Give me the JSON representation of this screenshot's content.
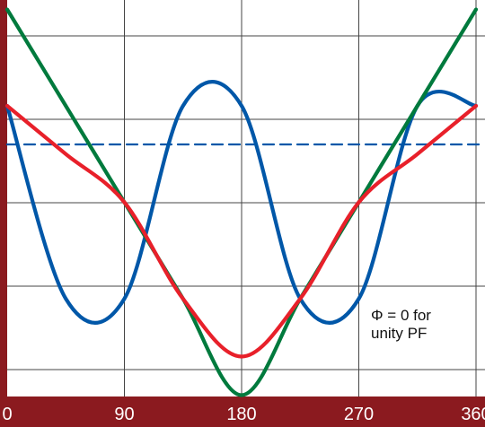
{
  "chart_data": {
    "type": "line",
    "title": "",
    "xlabel": "",
    "ylabel": "",
    "x_ticks": [
      "0",
      "90",
      "180",
      "270",
      "360"
    ],
    "xlim": [
      0,
      360
    ],
    "ylim": [
      -1.1,
      1.1
    ],
    "grid": true,
    "annotation": [
      "Φ = 0 for",
      "unity PF"
    ],
    "series": [
      {
        "color": "#0057a8",
        "style": "solid",
        "x": [
          0,
          45,
          90,
          135,
          180,
          225,
          270,
          315,
          360
        ],
        "y": [
          0.5,
          -0.5,
          -0.5,
          0.5,
          0.5,
          -0.5,
          -0.5,
          0.5,
          0.5
        ]
      },
      {
        "color": "#007a3d",
        "style": "solid",
        "x": [
          0,
          45,
          90,
          135,
          180,
          225,
          270,
          315,
          360
        ],
        "y": [
          1.0,
          0.5,
          0.0,
          -0.5,
          -1.0,
          -0.5,
          0.0,
          0.5,
          1.0
        ]
      },
      {
        "color": "#e8202a",
        "style": "solid",
        "x": [
          0,
          45,
          90,
          135,
          180,
          225,
          270,
          315,
          360
        ],
        "y": [
          0.5,
          0.25,
          0.0,
          -0.5,
          -0.8,
          -0.5,
          0.0,
          0.25,
          0.5
        ]
      },
      {
        "color": "#0057a8",
        "style": "dashed",
        "x": [
          0,
          360
        ],
        "y": [
          0.3,
          0.3
        ]
      }
    ]
  }
}
